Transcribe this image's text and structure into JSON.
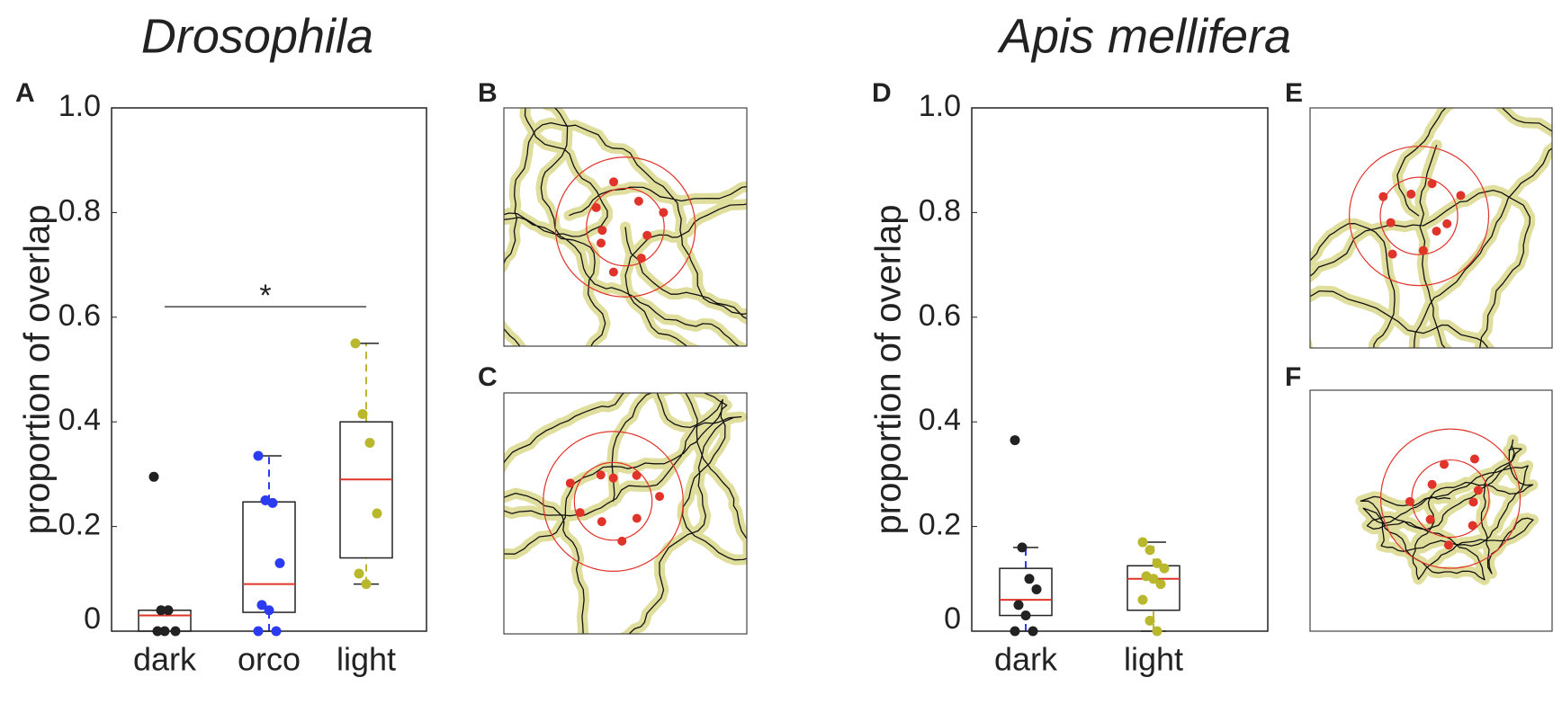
{
  "chart_data": [
    {
      "type": "box",
      "title": "Drosophila",
      "panel": "A",
      "inset_panels": [
        "B",
        "C"
      ],
      "ylabel": "proportion of overlap",
      "categories": [
        "dark",
        "orco",
        "light"
      ],
      "colors": [
        "#222222",
        "#2b3cf0",
        "#b9b72c"
      ],
      "ylim": [
        0,
        1
      ],
      "yticks": [
        0,
        0.2,
        0.4,
        0.6,
        0.8,
        {
          "value": 1,
          "label": "1.0"
        }
      ],
      "boxes": [
        {
          "whislo": 0,
          "q1": 0,
          "med": 0.03,
          "q3": 0.04,
          "whishi": 0.04,
          "points": [
            0.295,
            0.04,
            0.04,
            0,
            0,
            0
          ]
        },
        {
          "whislo": 0,
          "q1": 0.036,
          "med": 0.09,
          "q3": 0.247,
          "whishi": 0.335,
          "points": [
            0.335,
            0.25,
            0.245,
            0.13,
            0.05,
            0.04,
            0,
            0
          ]
        },
        {
          "whislo": 0.09,
          "q1": 0.14,
          "med": 0.29,
          "q3": 0.4,
          "whishi": 0.55,
          "points": [
            0.55,
            0.415,
            0.36,
            0.225,
            0.11,
            0.09
          ]
        }
      ],
      "annotations": [
        {
          "text": "*",
          "y": 0.62
        }
      ]
    },
    {
      "type": "box",
      "title": "Apis mellifera",
      "panel": "D",
      "inset_panels": [
        "E",
        "F"
      ],
      "ylabel": "proportion of overlap",
      "categories": [
        "dark",
        "light"
      ],
      "colors": [
        "#222222",
        "#b9b72c"
      ],
      "ylim": [
        0,
        1
      ],
      "yticks": [
        0,
        0.2,
        0.4,
        0.6,
        0.8,
        {
          "value": 1,
          "label": "1.0"
        }
      ],
      "boxes": [
        {
          "whislo": 0,
          "q1": 0.03,
          "med": 0.06,
          "q3": 0.12,
          "whishi": 0.16,
          "points": [
            0.365,
            0.16,
            0.1,
            0.08,
            0.05,
            0.03,
            0,
            0
          ]
        },
        {
          "whislo": 0,
          "q1": 0.04,
          "med": 0.1,
          "q3": 0.125,
          "whishi": 0.17,
          "points": [
            0.17,
            0.155,
            0.13,
            0.12,
            0.105,
            0.1,
            0.09,
            0.06,
            0.02,
            0
          ]
        }
      ]
    }
  ]
}
